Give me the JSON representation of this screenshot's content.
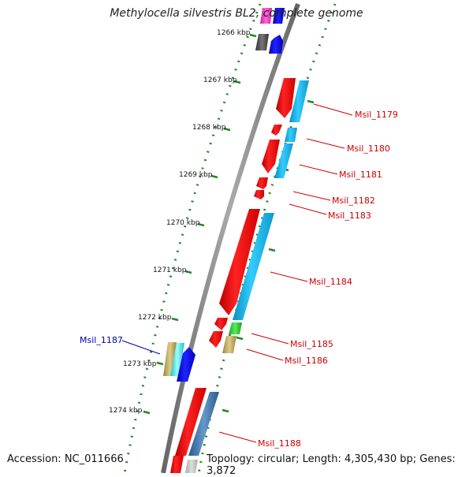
{
  "title": "Methylocella silvestris BL2, complete genome",
  "footer": {
    "accession": "Accession: NC_011666",
    "topology": "Topology: circular; Length: 4,305,430 bp; Genes: 3,872"
  },
  "tick_labels": [
    "1266 kbp",
    "1267 kbp",
    "1268 kbp",
    "1269 kbp",
    "1270 kbp",
    "1271 kbp",
    "1272 kbp",
    "1273 kbp",
    "1274 kbp"
  ],
  "gene_labels": [
    "Msil_1179",
    "Msil_1180",
    "Msil_1181",
    "Msil_1182",
    "Msil_1183",
    "Msil_1184",
    "Msil_1185",
    "Msil_1186",
    "Msil_1187",
    "Msil_1188"
  ],
  "colors": {
    "forward_gene": "#ee1111",
    "forward_label": "#cc0000",
    "reverse_gene": "#1111dd",
    "reverse_label": "#0000aa",
    "cds_cyan": "#11bbee",
    "rna_green": "#33cc33",
    "olive": "#bbaa66",
    "magenta": "#ee33bb",
    "gray_block": "#555555",
    "steel": "#4477aa",
    "backbone": "#888888",
    "ticks": "#228822"
  }
}
